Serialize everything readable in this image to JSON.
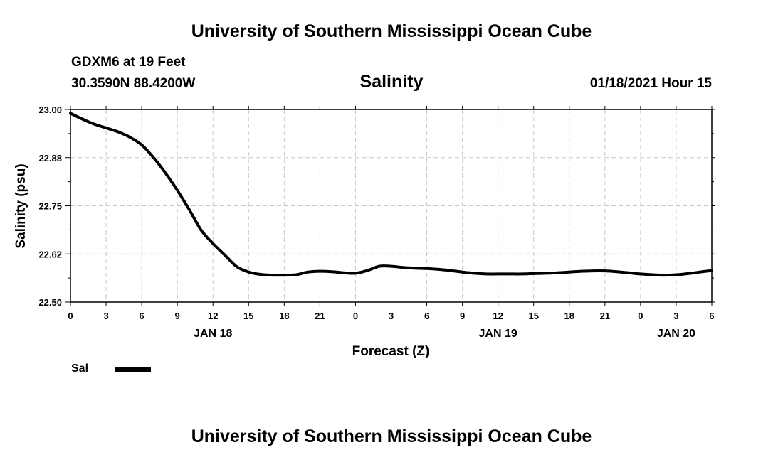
{
  "header": {
    "title": "University of Southern Mississippi Ocean Cube",
    "station": "GDXM6 at 19 Feet",
    "coords": "30.3590N 88.4200W",
    "datetime": "01/18/2021 Hour 15"
  },
  "footer": {
    "title": "University of Southern Mississippi Ocean Cube"
  },
  "legend": {
    "label": "Sal"
  },
  "chart_data": {
    "type": "line",
    "title": "Salinity",
    "xlabel": "Forecast (Z)",
    "ylabel": "Salinity (psu)",
    "xlim": [
      0,
      54
    ],
    "ylim": [
      22.5,
      23.0
    ],
    "grid": true,
    "y_ticks": [
      {
        "value": 23.0,
        "label": "23.00"
      },
      {
        "value": 22.875,
        "label": "22.88"
      },
      {
        "value": 22.75,
        "label": "22.75"
      },
      {
        "value": 22.625,
        "label": "22.62"
      },
      {
        "value": 22.5,
        "label": "22.50"
      }
    ],
    "x_ticks": [
      {
        "hour": 0,
        "label": "0"
      },
      {
        "hour": 3,
        "label": "3"
      },
      {
        "hour": 6,
        "label": "6"
      },
      {
        "hour": 9,
        "label": "9"
      },
      {
        "hour": 12,
        "label": "12"
      },
      {
        "hour": 15,
        "label": "15"
      },
      {
        "hour": 18,
        "label": "18"
      },
      {
        "hour": 21,
        "label": "21"
      },
      {
        "hour": 24,
        "label": "0"
      },
      {
        "hour": 27,
        "label": "3"
      },
      {
        "hour": 30,
        "label": "6"
      },
      {
        "hour": 33,
        "label": "9"
      },
      {
        "hour": 36,
        "label": "12"
      },
      {
        "hour": 39,
        "label": "15"
      },
      {
        "hour": 42,
        "label": "18"
      },
      {
        "hour": 45,
        "label": "21"
      },
      {
        "hour": 48,
        "label": "0"
      },
      {
        "hour": 51,
        "label": "3"
      },
      {
        "hour": 54,
        "label": "6"
      }
    ],
    "date_labels": [
      {
        "hour": 12,
        "label": "JAN 18"
      },
      {
        "hour": 36,
        "label": "JAN 19"
      },
      {
        "hour": 51,
        "label": "JAN 20"
      }
    ],
    "series": [
      {
        "name": "Sal",
        "color": "#000000",
        "x": [
          0,
          1,
          2,
          3,
          4,
          5,
          6,
          7,
          8,
          9,
          10,
          11,
          12,
          13,
          14,
          15,
          16,
          17,
          18,
          19,
          20,
          21,
          22,
          23,
          24,
          25,
          26,
          27,
          28,
          29,
          30,
          31,
          32,
          33,
          34,
          35,
          36,
          37,
          38,
          39,
          40,
          41,
          42,
          43,
          44,
          45,
          46,
          47,
          48,
          49,
          50,
          51,
          52,
          53,
          54
        ],
        "values": [
          22.99,
          22.975,
          22.962,
          22.952,
          22.942,
          22.928,
          22.908,
          22.875,
          22.835,
          22.79,
          22.74,
          22.687,
          22.652,
          22.622,
          22.592,
          22.578,
          22.572,
          22.57,
          22.57,
          22.571,
          22.578,
          22.58,
          22.579,
          22.576,
          22.575,
          22.582,
          22.593,
          22.593,
          22.59,
          22.588,
          22.587,
          22.585,
          22.582,
          22.578,
          22.575,
          22.573,
          22.573,
          22.573,
          22.573,
          22.574,
          22.575,
          22.576,
          22.578,
          22.58,
          22.581,
          22.581,
          22.579,
          22.576,
          22.573,
          22.571,
          22.57,
          22.571,
          22.574,
          22.578,
          22.582
        ]
      }
    ]
  }
}
